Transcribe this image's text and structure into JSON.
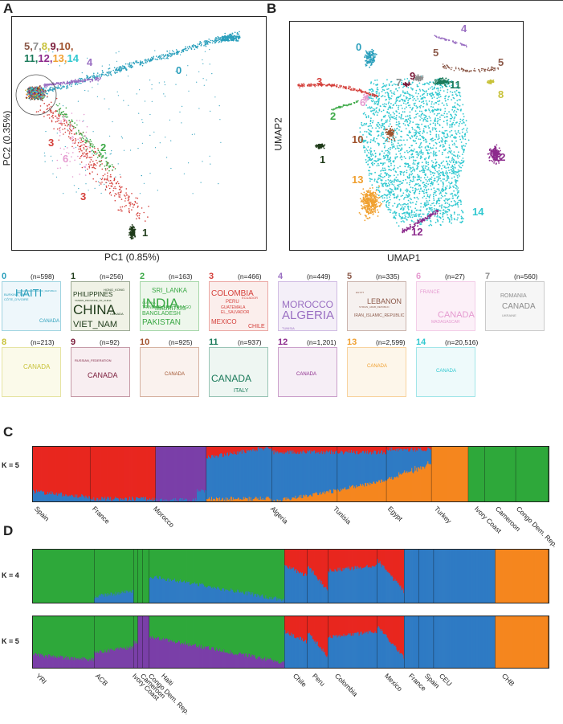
{
  "panels": {
    "a": "A",
    "b": "B",
    "c": "C",
    "d": "D"
  },
  "pca": {
    "xlabel": "PC1 (0.85%)",
    "ylabel": "PC2 (0.35%)",
    "group_label_line1": [
      "5,",
      "7,",
      "8,",
      "9,",
      "10,"
    ],
    "group_label_line2": [
      "11,",
      "12,",
      "13,",
      "14"
    ],
    "cluster_labels": [
      "0",
      "1",
      "2",
      "3",
      "3",
      "4",
      "6"
    ]
  },
  "umap": {
    "xlabel": "UMAP1",
    "ylabel": "UMAP2",
    "cluster_labels": [
      "0",
      "1",
      "2",
      "3",
      "4",
      "5",
      "5",
      "6",
      "7",
      "8",
      "9",
      "10",
      "11",
      "12",
      "12",
      "13",
      "14"
    ]
  },
  "colors": {
    "c0": "#2a9fbc",
    "c1": "#1f3b1a",
    "c2": "#3aa845",
    "c3": "#d43f3a",
    "c4": "#9a6fc2",
    "c5": "#8c5a4a",
    "c6": "#e59ad0",
    "c7": "#8c8c8c",
    "c8": "#c8c23a",
    "c9": "#7a1b3a",
    "c10": "#a0522d",
    "c11": "#1a7a5a",
    "c12": "#8c2a8c",
    "c13": "#f0a030",
    "c14": "#30c8d0",
    "adm_red": "#e8261f",
    "adm_blue": "#2f7bc4",
    "adm_green": "#2ea83a",
    "adm_purple": "#7a3fa8",
    "adm_orange": "#f5861f"
  },
  "wordclouds": [
    {
      "num": "0",
      "n": "(n=598)",
      "words": [
        "HAITI",
        "CANADA",
        "BURKINA_FASO",
        "CÔTE_D'IVOIRE",
        "CONGO_DEMOCRATIC_REPUBLIC"
      ]
    },
    {
      "num": "1",
      "n": "(n=256)",
      "words": [
        "CHINA",
        "VIET_NAM",
        "PHILIPPINES",
        "CANADA",
        "HONG_KONG",
        "TAIWAN_PROVINCE_OF_CHINA"
      ]
    },
    {
      "num": "2",
      "n": "(n=163)",
      "words": [
        "INDIA",
        "PAKISTAN",
        "SRI_LANKA",
        "MAURITIUS",
        "BANGLADESH",
        "TRINIDAD_AND_TOBAGO",
        "GUYANA"
      ]
    },
    {
      "num": "3",
      "n": "(n=466)",
      "words": [
        "COLOMBIA",
        "MEXICO",
        "PERU",
        "CHILE",
        "GUATEMALA",
        "EL_SALVADOR",
        "ECUADOR"
      ]
    },
    {
      "num": "4",
      "n": "(n=449)",
      "words": [
        "MOROCCO",
        "ALGERIA",
        "TUNISIA"
      ]
    },
    {
      "num": "5",
      "n": "(n=335)",
      "words": [
        "LEBANON",
        "IRAN_ISLAMIC_REPUBLIC",
        "SYRIAN_ARAB_REPUBLIC",
        "EGYPT"
      ]
    },
    {
      "num": "6",
      "n": "(n=27)",
      "words": [
        "CANADA",
        "FRANCE",
        "MADAGASCAR"
      ]
    },
    {
      "num": "7",
      "n": "(n=560)",
      "words": [
        "CANADA",
        "ROMANIA",
        "UKRAINE"
      ]
    },
    {
      "num": "8",
      "n": "(n=213)",
      "words": [
        "CANADA"
      ]
    },
    {
      "num": "9",
      "n": "(n=92)",
      "words": [
        "CANADA",
        "RUSSIAN_FEDERATION",
        "FRANCE"
      ]
    },
    {
      "num": "10",
      "n": "(n=925)",
      "words": [
        "CANADA"
      ]
    },
    {
      "num": "11",
      "n": "(n=937)",
      "words": [
        "CANADA",
        "ITALY"
      ]
    },
    {
      "num": "12",
      "n": "(n=1,201)",
      "words": [
        "CANADA"
      ]
    },
    {
      "num": "13",
      "n": "(n=2,599)",
      "words": [
        "CANADA"
      ]
    },
    {
      "num": "14",
      "n": "(n=20,516)",
      "words": [
        "CANADA"
      ]
    }
  ],
  "panel_c": {
    "k": "K = 5",
    "pops": [
      "Spain",
      "France",
      "Morocco",
      "Algeria",
      "Tunisia",
      "Egypt",
      "Turkey",
      "Ivory Coast",
      "Cameroon",
      "Congo Dem. Rep."
    ]
  },
  "panel_d": {
    "k4": "K = 4",
    "k5": "K = 5",
    "pops": [
      "YRI",
      "ACB",
      "Ivory Coast",
      "Cameroon",
      "Congo Dem. Rep.",
      "Haiti",
      "Chile",
      "Peru",
      "Colombia",
      "Mexico",
      "France",
      "Spain",
      "CEU",
      "CHB"
    ]
  }
}
